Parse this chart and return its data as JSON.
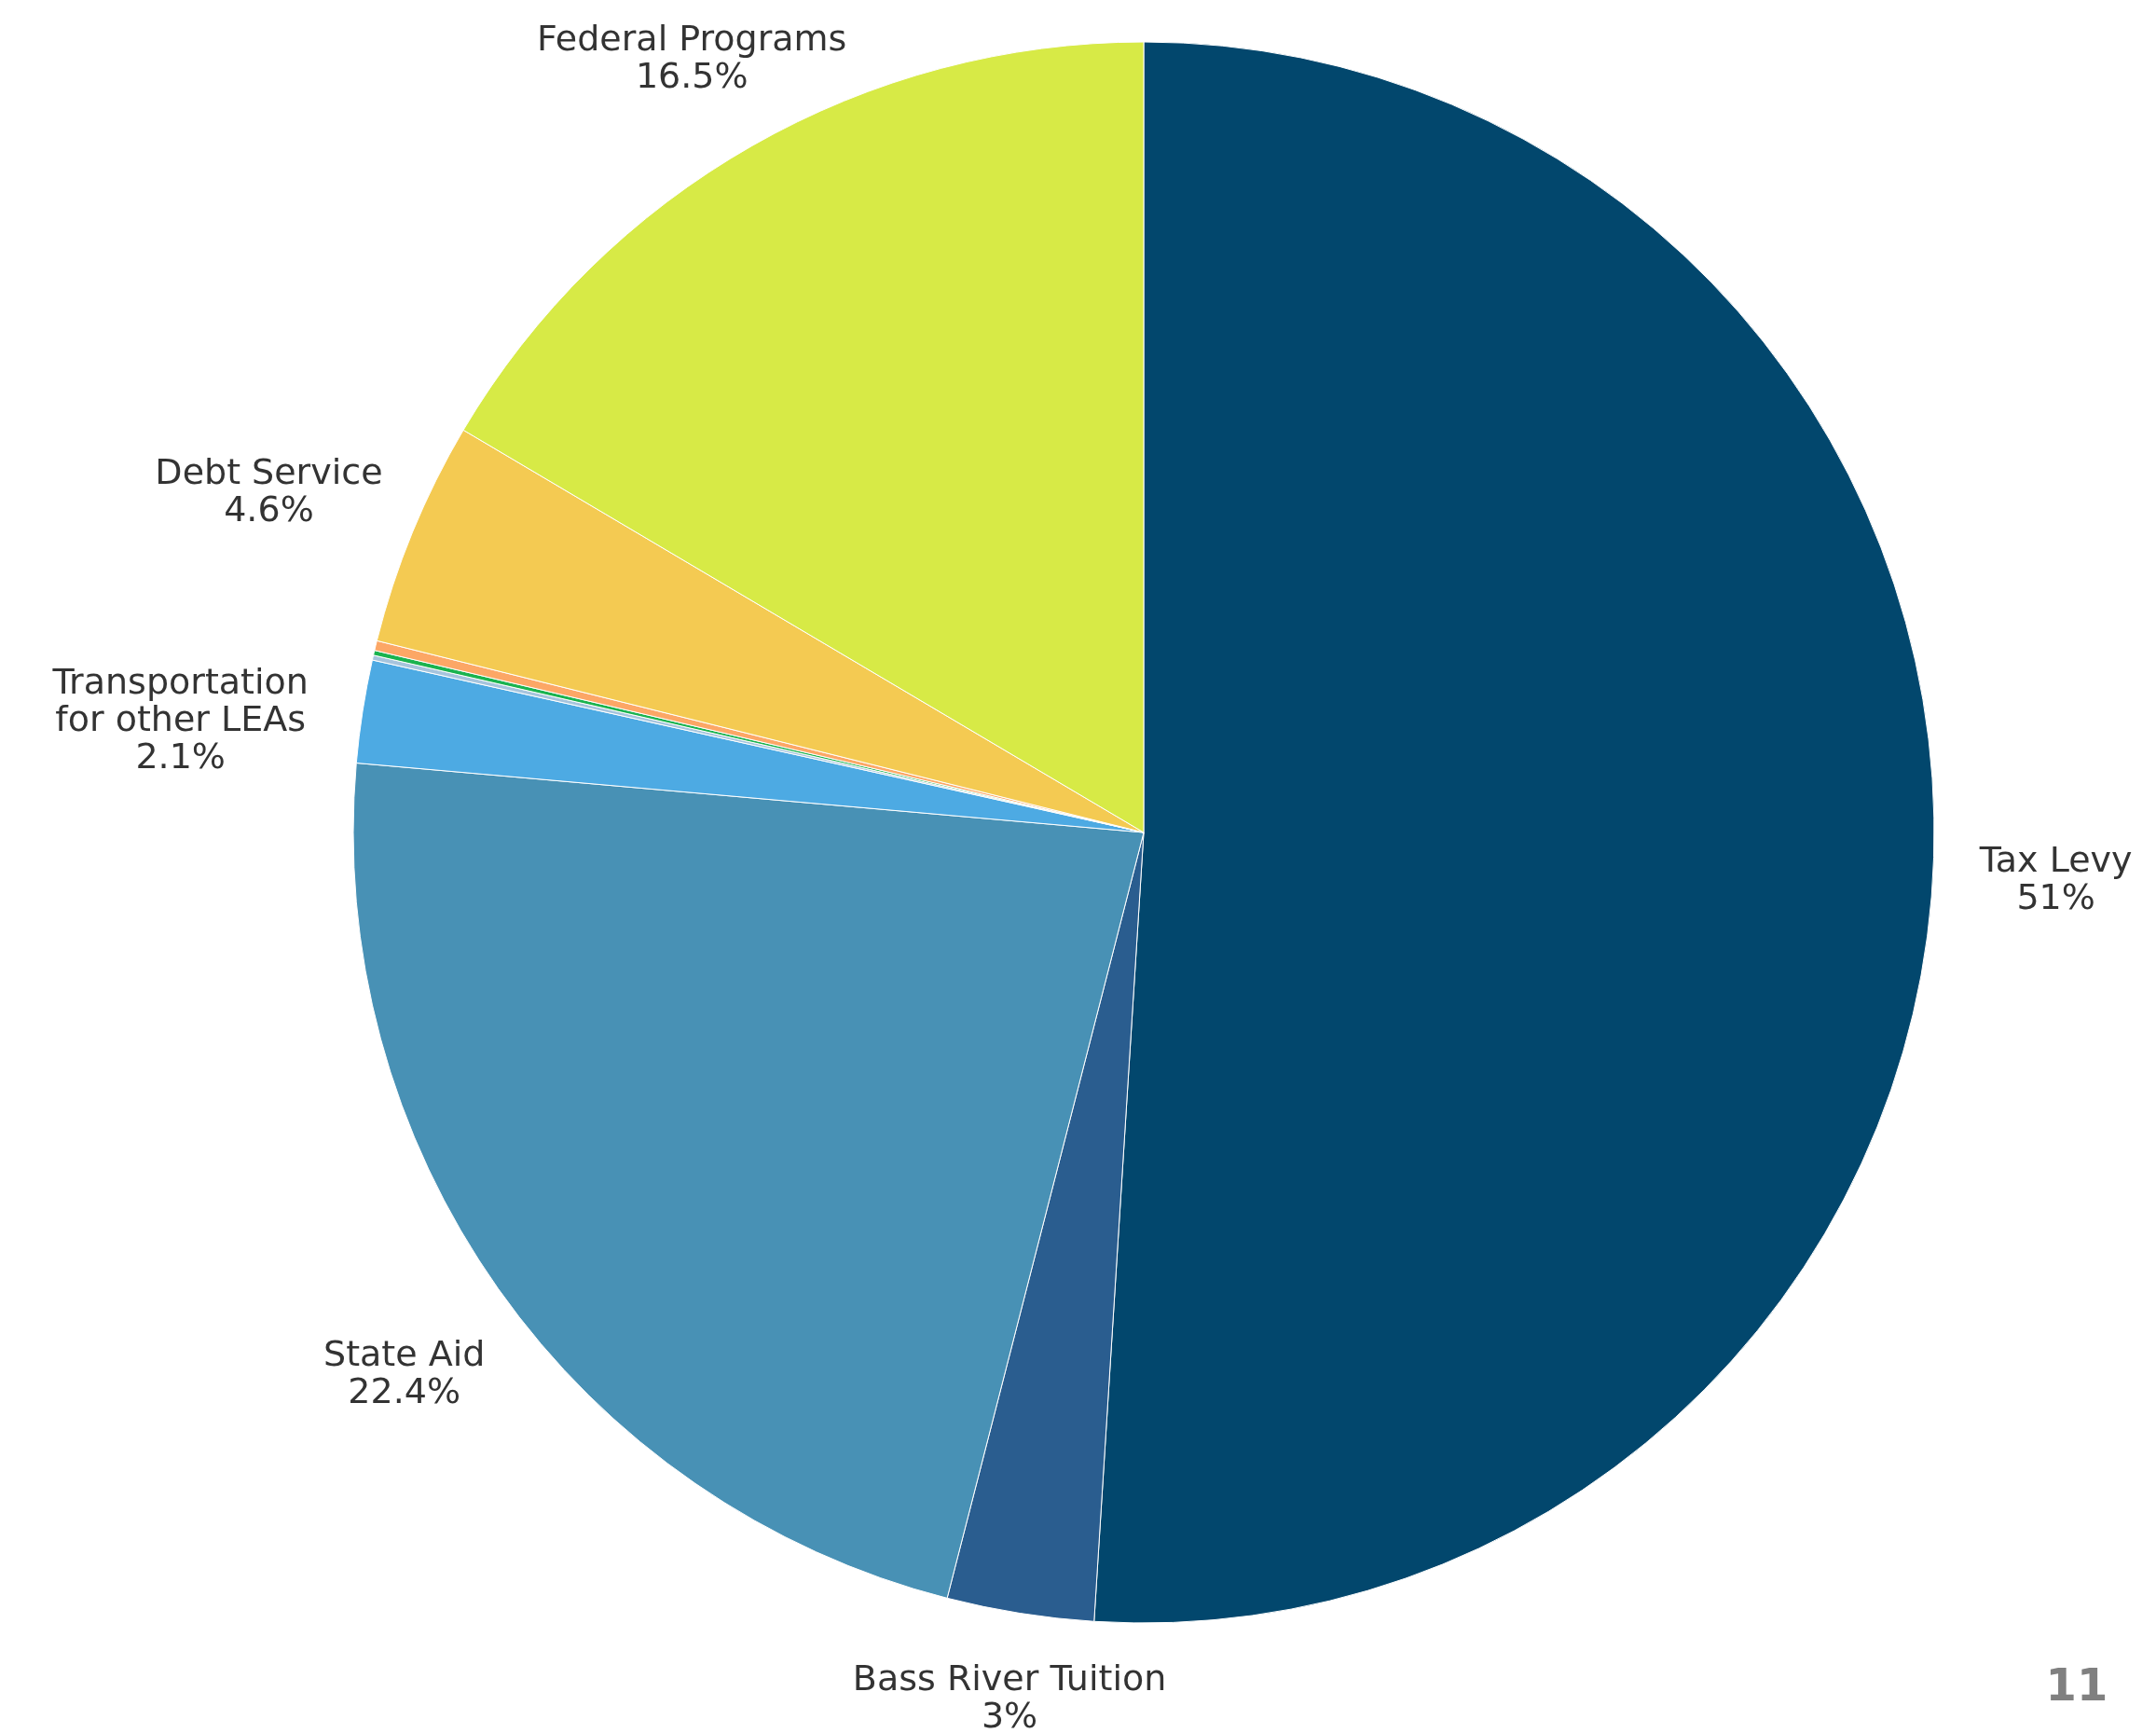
{
  "chart_data": {
    "type": "pie",
    "categories": [
      "Tax Levy",
      "Bass River Tuition",
      "State Aid",
      "Transportation for other LEAs",
      null,
      null,
      null,
      "Debt Service",
      "Federal Programs"
    ],
    "values": [
      51,
      3,
      22.4,
      2.1,
      0.1,
      0.1,
      0.2,
      4.6,
      16.5
    ],
    "value_labels": [
      "51%",
      "3%",
      "22.4%",
      "2.1%",
      null,
      null,
      null,
      "4.6%",
      "16.5%"
    ],
    "colors": [
      "#02476d",
      "#2a5d8f",
      "#4891b5",
      "#4daae3",
      "#a6c4dd",
      "#1ab34f",
      "#fca766",
      "#f4ca52",
      "#d7ea46"
    ],
    "annotations": [
      "11"
    ]
  }
}
